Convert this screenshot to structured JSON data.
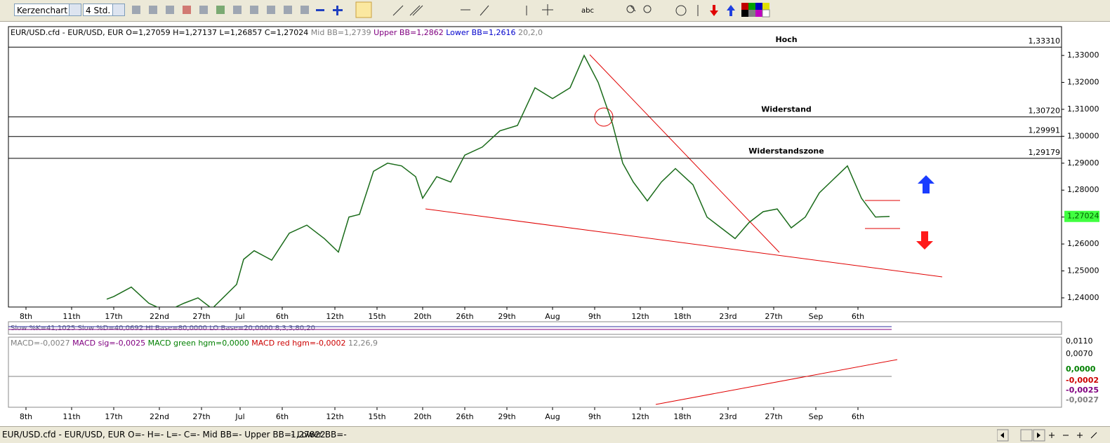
{
  "toolbar": {
    "chart_type": "Kerzenchart",
    "period": "4 Std.",
    "text_tool": "abc"
  },
  "header": [
    {
      "text": "EUR/USD.cfd - EUR/USD, EUR O=1,27059 H=1,27137 L=1,26857 C=1,27024",
      "color": "#000000"
    },
    {
      "text": "Mid BB=1,2739",
      "color": "#808080"
    },
    {
      "text": "Upper BB=1,2862",
      "color": "#800080"
    },
    {
      "text": "Lower BB=1,2616",
      "color": "#0000cc"
    },
    {
      "text": "20,2,0",
      "color": "#808080"
    }
  ],
  "chart_data": {
    "type": "line",
    "x": [
      28,
      30,
      35,
      40,
      45,
      50,
      54,
      58,
      65,
      67,
      70,
      75,
      80,
      85,
      90,
      94,
      97,
      100,
      104,
      108,
      112,
      116,
      118,
      122,
      126,
      130,
      135,
      140,
      145,
      150,
      155,
      160,
      164,
      168,
      172,
      175,
      178,
      182,
      186,
      190,
      195,
      199,
      203,
      207,
      211,
      215,
      219,
      223,
      227,
      231,
      235,
      239,
      243,
      247,
      251
    ],
    "series": [
      {
        "color": "#1a6b1a",
        "values": [
          1.2395,
          1.2405,
          1.244,
          1.238,
          1.235,
          1.238,
          1.24,
          1.236,
          1.245,
          1.2543,
          1.2575,
          1.254,
          1.264,
          1.267,
          1.262,
          1.257,
          1.27,
          1.271,
          1.287,
          1.29,
          1.289,
          1.285,
          1.277,
          1.285,
          1.283,
          1.293,
          1.296,
          1.302,
          1.304,
          1.318,
          1.314,
          1.318,
          1.33,
          1.32,
          1.305,
          1.29,
          1.283,
          1.276,
          1.283,
          1.288,
          1.282,
          1.27,
          1.266,
          1.262,
          1.268,
          1.272,
          1.273,
          1.266,
          1.27,
          1.279,
          1.284,
          1.289,
          1.277,
          1.27,
          1.27024
        ]
      }
    ],
    "xlim": [
      0,
      300
    ],
    "xticks": [
      {
        "value": 5,
        "label": "8th"
      },
      {
        "value": 18,
        "label": "11th"
      },
      {
        "value": 30,
        "label": "17th"
      },
      {
        "value": 43,
        "label": "22nd"
      },
      {
        "value": 55,
        "label": "27th"
      },
      {
        "value": 66,
        "label": "Jul"
      },
      {
        "value": 78,
        "label": "6th"
      },
      {
        "value": 93,
        "label": "12th"
      },
      {
        "value": 105,
        "label": "15th"
      },
      {
        "value": 118,
        "label": "20th"
      },
      {
        "value": 130,
        "label": "26th"
      },
      {
        "value": 142,
        "label": "29th"
      },
      {
        "value": 155,
        "label": "Aug"
      },
      {
        "value": 167,
        "label": "9th"
      },
      {
        "value": 180,
        "label": "12th"
      },
      {
        "value": 192,
        "label": "18th"
      },
      {
        "value": 205,
        "label": "23rd"
      },
      {
        "value": 218,
        "label": "27th"
      },
      {
        "value": 230,
        "label": "Sep"
      },
      {
        "value": 242,
        "label": "6th"
      }
    ],
    "ylim": [
      1.2366,
      1.3407
    ],
    "yticks": [
      {
        "value": 1.33,
        "label": "1,33000"
      },
      {
        "value": 1.32,
        "label": "1,32000"
      },
      {
        "value": 1.31,
        "label": "1,31000"
      },
      {
        "value": 1.3,
        "label": "1,30000"
      },
      {
        "value": 1.29,
        "label": "1,29000"
      },
      {
        "value": 1.28,
        "label": "1,28000"
      },
      {
        "value": 1.27,
        "label": "1,27000"
      },
      {
        "value": 1.26,
        "label": "1,26000"
      },
      {
        "value": 1.25,
        "label": "1,25000"
      },
      {
        "value": 1.24,
        "label": "1,24000"
      }
    ],
    "levels": [
      {
        "value": 1.3331,
        "label": "1,33310",
        "name": "Hoch"
      },
      {
        "value": 1.3072,
        "label": "1,30720",
        "name": "Widerstand"
      },
      {
        "value": 1.29991,
        "label": "1,29991"
      },
      {
        "value": 1.29179,
        "label": "1,29179",
        "name": "Widerstandszone"
      }
    ],
    "last": {
      "value": 1.27024,
      "label": "1,27024"
    }
  },
  "stochastic": {
    "text": "Slow %K=41,1025 Slow %D=40,0692 HI Base=80,0000 LO Base=20,0000 8,3,3,80,20"
  },
  "macd": {
    "header": [
      {
        "text": "MACD=-0,0027",
        "color": "#808080"
      },
      {
        "text": "MACD sig=-0,0025",
        "color": "#800080"
      },
      {
        "text": "MACD green hgm=0,0000",
        "color": "#008000"
      },
      {
        "text": "MACD red hgm=-0,0002",
        "color": "#cc0000"
      },
      {
        "text": "12,26,9",
        "color": "#808080"
      }
    ],
    "axis_labels": [
      {
        "text": "0,0110",
        "color": "#000000"
      },
      {
        "text": "0,0070",
        "color": "#000000"
      },
      {
        "text": "0,0000",
        "color": "#008000"
      },
      {
        "text": "-0,0002",
        "color": "#cc0000"
      },
      {
        "text": "-0,0025",
        "color": "#800080"
      },
      {
        "text": "-0,0027",
        "color": "#808080"
      }
    ]
  },
  "status_bar": {
    "text": "EUR/USD.cfd - EUR/USD, EUR O=- H=- L=- C=-   Mid BB=- Upper BB=- Lower BB=-",
    "price": "1,27822"
  }
}
